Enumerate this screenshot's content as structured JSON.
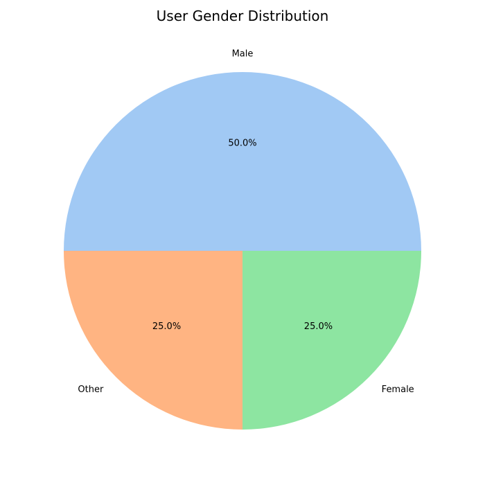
{
  "chart_data": {
    "type": "pie",
    "title": "User Gender Distribution",
    "start_angle_deg": 0,
    "direction": "counterclockwise",
    "slices": [
      {
        "label": "Male",
        "value": 50.0,
        "pct_label": "50.0%",
        "color": "#a1c9f4"
      },
      {
        "label": "Other",
        "value": 25.0,
        "pct_label": "25.0%",
        "color": "#ffb482"
      },
      {
        "label": "Female",
        "value": 25.0,
        "pct_label": "25.0%",
        "color": "#8de5a1"
      }
    ]
  }
}
